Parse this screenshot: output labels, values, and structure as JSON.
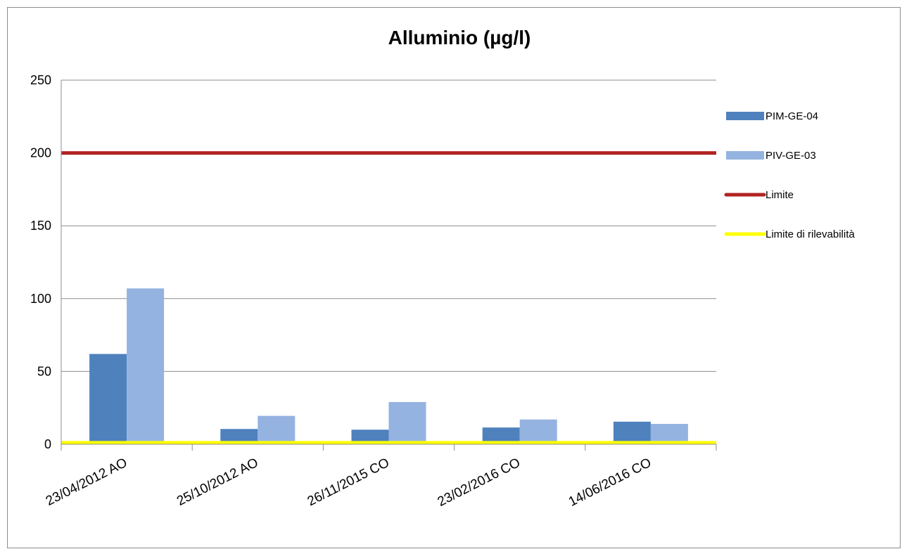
{
  "chart_data": {
    "type": "bar",
    "title": "Alluminio (µg/l)",
    "xlabel": "",
    "ylabel": "",
    "ylim": [
      0,
      250
    ],
    "yticks": [
      0,
      50,
      100,
      150,
      200,
      250
    ],
    "grid": true,
    "legend_position": "right",
    "categories": [
      "23/04/2012 AO",
      "25/10/2012 AO",
      "26/11/2015 CO",
      "23/02/2016 CO",
      "14/06/2016 CO"
    ],
    "series": [
      {
        "name": "PIM-GE-04",
        "type": "bar",
        "color": "#4f81bd",
        "values": [
          62,
          10.5,
          10,
          11.5,
          15.5
        ]
      },
      {
        "name": "PIV-GE-03",
        "type": "bar",
        "color": "#95b3e0",
        "values": [
          107,
          19.5,
          29,
          17,
          14
        ]
      },
      {
        "name": "Limite",
        "type": "line",
        "color": "#b22222",
        "value": 200
      },
      {
        "name": "Limite di rilevabilità",
        "type": "line",
        "color": "#ffff00",
        "value": 1
      }
    ]
  }
}
